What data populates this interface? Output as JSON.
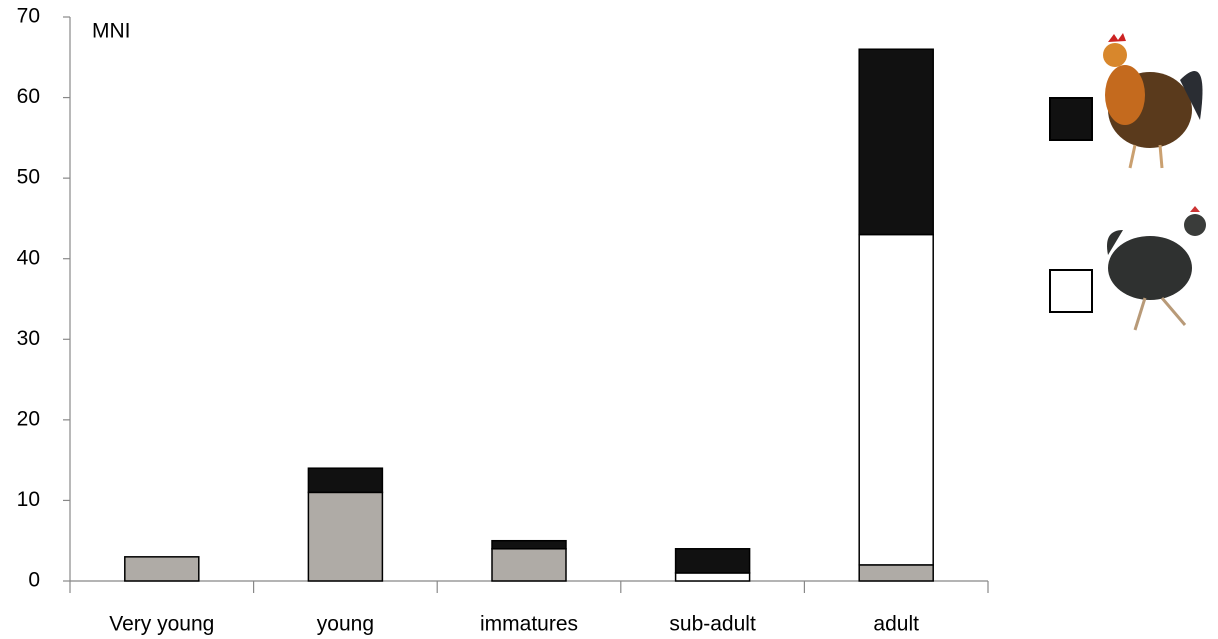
{
  "chart_data": {
    "type": "stacked_bar",
    "y_label": "MNI",
    "categories": [
      "Very young",
      "young",
      "immatures",
      "sub-adult",
      "adult"
    ],
    "series": [
      {
        "color": "#afaba6",
        "values": [
          3,
          11,
          4,
          0,
          2
        ]
      },
      {
        "color": "#ffffff",
        "values": [
          0,
          0,
          0,
          1,
          41
        ]
      },
      {
        "color": "#111111",
        "values": [
          0,
          3,
          1,
          3,
          23
        ]
      }
    ],
    "ylim": [
      0,
      70
    ],
    "yticks": [
      0,
      10,
      20,
      30,
      40,
      50,
      60,
      70
    ],
    "grid": false
  }
}
